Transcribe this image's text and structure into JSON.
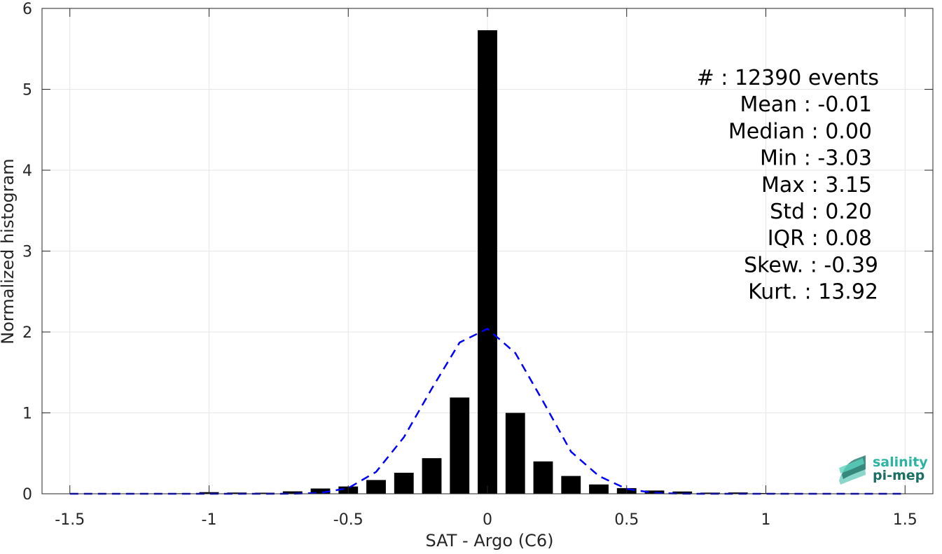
{
  "chart_data": {
    "type": "bar",
    "xlabel": "SAT - Argo (C6)",
    "ylabel": "Normalized histogram",
    "xlim": [
      -1.6,
      1.6
    ],
    "ylim": [
      0,
      6
    ],
    "grid": true,
    "xticks": [
      -1.5,
      -1,
      -0.5,
      0,
      0.5,
      1,
      1.5
    ],
    "xtick_labels": [
      "-1.5",
      "-1",
      "-0.5",
      "0",
      "0.5",
      "1",
      "1.5"
    ],
    "yticks": [
      0,
      1,
      2,
      3,
      4,
      5,
      6
    ],
    "ytick_labels": [
      "0",
      "1",
      "2",
      "3",
      "4",
      "5",
      "6"
    ],
    "bar_width": 0.07,
    "series": [
      {
        "type": "bar",
        "color": "#000000",
        "x": [
          -1.5,
          -1.4,
          -1.3,
          -1.2,
          -1.1,
          -1.0,
          -0.9,
          -0.8,
          -0.7,
          -0.6,
          -0.5,
          -0.4,
          -0.3,
          -0.2,
          -0.1,
          0.0,
          0.1,
          0.2,
          0.3,
          0.4,
          0.5,
          0.6,
          0.7,
          0.8,
          0.9,
          1.0,
          1.1,
          1.2,
          1.3,
          1.4,
          1.5
        ],
        "values": [
          0.004,
          0.004,
          0.004,
          0.004,
          0.006,
          0.02,
          0.015,
          0.013,
          0.03,
          0.065,
          0.09,
          0.17,
          0.26,
          0.44,
          1.19,
          5.73,
          1.0,
          0.4,
          0.22,
          0.115,
          0.07,
          0.04,
          0.028,
          0.014,
          0.016,
          0.009,
          0.006,
          0.004,
          0.004,
          0.004,
          0.004
        ]
      },
      {
        "type": "line",
        "style": "dashed",
        "color": "#0000ff",
        "x": [
          -1.5,
          -1.4,
          -1.3,
          -1.2,
          -1.1,
          -1.0,
          -0.9,
          -0.8,
          -0.7,
          -0.6,
          -0.5,
          -0.4,
          -0.3,
          -0.2,
          -0.1,
          0.0,
          0.1,
          0.2,
          0.3,
          0.4,
          0.5,
          0.6,
          0.7,
          0.8,
          0.9,
          1.0,
          1.1,
          1.2,
          1.3,
          1.4,
          1.5
        ],
        "values": [
          0,
          0,
          0,
          0,
          0,
          0,
          0,
          0,
          0.001,
          0.01,
          0.07,
          0.27,
          0.7,
          1.3,
          1.87,
          2.04,
          1.74,
          1.14,
          0.52,
          0.22,
          0.06,
          0.01,
          0.001,
          0,
          0,
          0,
          0,
          0,
          0,
          0,
          0
        ]
      }
    ],
    "annotations": [
      "#  : 12390 events",
      "Mean : -0.01",
      "Median : 0.00",
      "Min : -3.03",
      "Max : 3.15",
      "Std : 0.20",
      "IQR : 0.08",
      "Skew. : -0.39",
      "Kurt. : 13.92"
    ]
  },
  "logo": {
    "line1": "salinity",
    "line2": "pi-mep",
    "color_primary": "#2bb5a0",
    "color_secondary": "#1a6e63"
  }
}
